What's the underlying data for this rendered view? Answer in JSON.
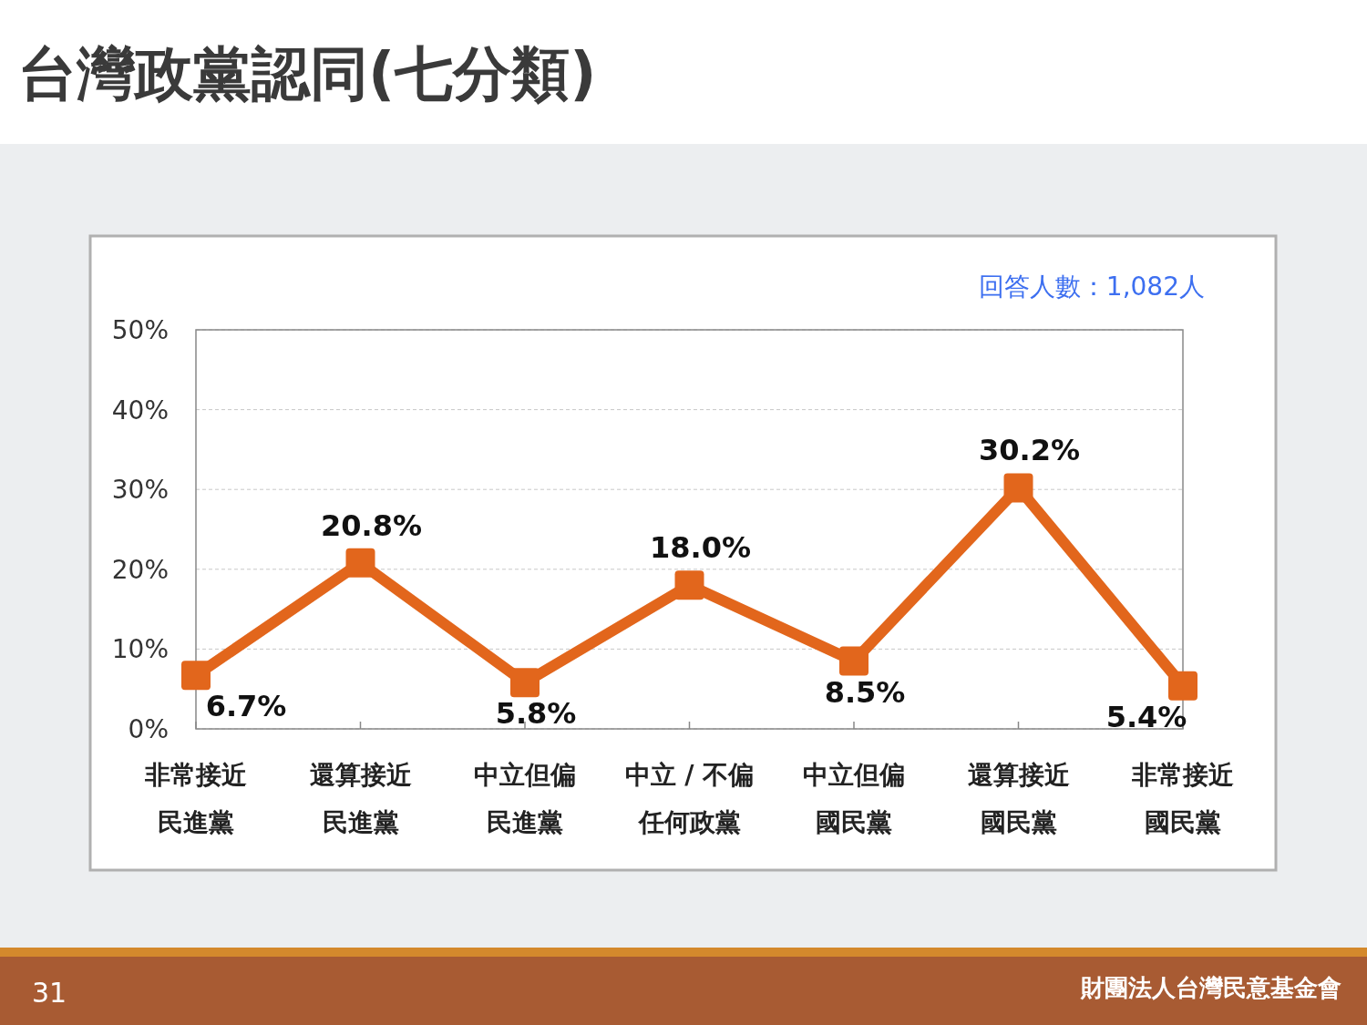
{
  "chart_data": {
    "type": "line",
    "title": "台灣政黨認同(七分類)",
    "categories": [
      "非常接近民進黨",
      "還算接近民進黨",
      "中立但偏民進黨",
      "中立 / 不偏任何政黨",
      "中立但偏國民黨",
      "還算接近國民黨",
      "非常接近國民黨"
    ],
    "series": [
      {
        "color": "#e2661c",
        "values": [
          6.7,
          20.8,
          5.8,
          18.0,
          8.5,
          30.2,
          5.4
        ],
        "value_labels": [
          "6.7%",
          "20.8%",
          "5.8%",
          "18.0%",
          "8.5%",
          "30.2%",
          "5.4%"
        ]
      }
    ],
    "ylim": [
      0,
      50
    ],
    "yticks": [
      {
        "value": 0,
        "label": "0%"
      },
      {
        "value": 10,
        "label": "10%"
      },
      {
        "value": 20,
        "label": "20%"
      },
      {
        "value": 30,
        "label": "30%"
      },
      {
        "value": 40,
        "label": "40%"
      },
      {
        "value": 50,
        "label": "50%"
      }
    ],
    "grid": "y",
    "marker": "square",
    "line_style": "solid",
    "annotations": [
      "回答人數：1,082人",
      "31",
      "財團法人台灣民意基金會"
    ]
  }
}
